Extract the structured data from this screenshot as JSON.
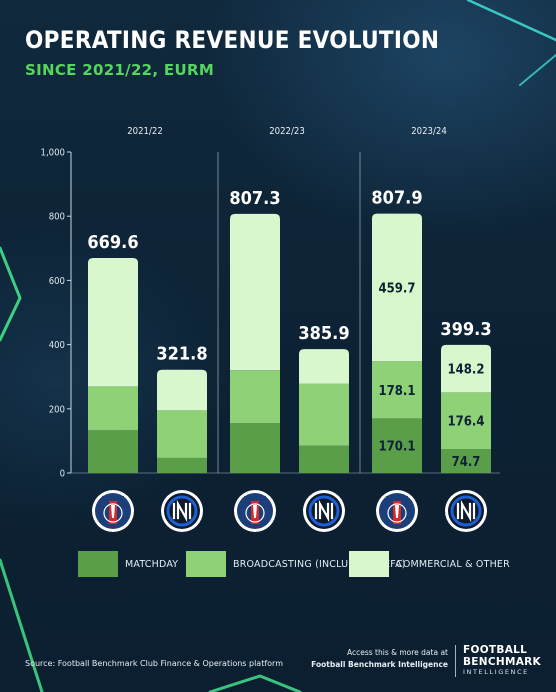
{
  "header": {
    "title": "OPERATING REVENUE EVOLUTION",
    "subtitle": "SINCE 2021/22, EURM"
  },
  "colors": {
    "background": "#0d2335",
    "accent_green": "#55d65c",
    "matchday": "#5a9e4a",
    "broadcasting": "#8fd176",
    "commercial": "#d9f7cc"
  },
  "chart_data": {
    "type": "bar",
    "stacked": true,
    "ylim": [
      0,
      1000
    ],
    "yticks": [
      0,
      200,
      400,
      600,
      800,
      1000
    ],
    "ytick_labels": [
      "0",
      "200",
      "400",
      "600",
      "800",
      "1,000"
    ],
    "groups": [
      "2021/22",
      "2022/23",
      "2023/24"
    ],
    "clubs": [
      "Paris Saint-Germain",
      "Inter"
    ],
    "club_icons": [
      "psg-crest-icon",
      "inter-crest-icon"
    ],
    "series": [
      {
        "name": "MATCHDAY",
        "color": "#5a9e4a",
        "values": [
          [
            133,
            47
          ],
          [
            155,
            85
          ],
          [
            170.1,
            74.7
          ]
        ],
        "labels": [
          [
            "",
            ""
          ],
          [
            "",
            ""
          ],
          [
            "170.1",
            "74.7"
          ]
        ]
      },
      {
        "name": "BROADCASTING (INCLUDING UEFA)",
        "color": "#8fd176",
        "values": [
          [
            137,
            148
          ],
          [
            165,
            194
          ],
          [
            178.1,
            176.4
          ]
        ],
        "labels": [
          [
            "",
            ""
          ],
          [
            "",
            ""
          ],
          [
            "178.1",
            "176.4"
          ]
        ]
      },
      {
        "name": "COMMERCIAL & OTHER",
        "color": "#d9f7cc",
        "values": [
          [
            399.6,
            126.8
          ],
          [
            487.3,
            106.9
          ],
          [
            459.7,
            148.2
          ]
        ],
        "labels": [
          [
            "",
            ""
          ],
          [
            "",
            ""
          ],
          [
            "459.7",
            "148.2"
          ]
        ]
      }
    ],
    "totals": [
      [
        669.6,
        321.8
      ],
      [
        807.3,
        385.9
      ],
      [
        807.9,
        399.3
      ]
    ],
    "total_labels": [
      [
        "669.6",
        "321.8"
      ],
      [
        "807.3",
        "385.9"
      ],
      [
        "807.9",
        "399.3"
      ]
    ],
    "legend_position": "bottom"
  },
  "footer": {
    "source": "Source: Football Benchmark Club Finance & Operations platform",
    "access_line1": "Access this & more data at",
    "access_line2": "Football Benchmark Intelligence",
    "brand_line1": "FOOTBALL",
    "brand_line2": "BENCHMARK",
    "brand_line3": "INTELLIGENCE"
  }
}
